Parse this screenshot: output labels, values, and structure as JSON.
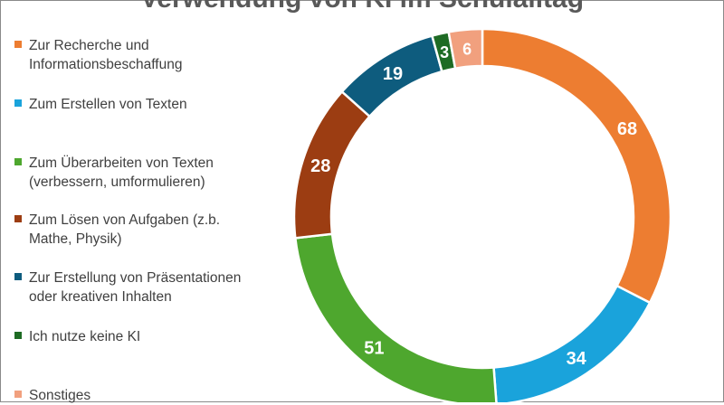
{
  "chart_data": {
    "type": "pie",
    "style": "donut",
    "title": "Verwendung von KI im Schulalltag",
    "legend_position": "left",
    "categories": [
      "Zur Recherche und\nInformationsbeschaffung",
      "Zum Erstellen von Texten",
      "Zum Überarbeiten von Texten\n(verbessern, umformulieren)",
      "Zum Lösen von Aufgaben (z.b.\nMathe, Physik)",
      "Zur Erstellung von Präsentationen\noder kreativen Inhalten",
      "Ich nutze keine KI",
      "Sonstiges"
    ],
    "values": [
      68,
      34,
      51,
      28,
      19,
      3,
      6
    ],
    "colors": [
      "#ED7D31",
      "#1AA3DB",
      "#4EA72E",
      "#9C3D12",
      "#0E5C7E",
      "#1E6B24",
      "#F1A07E"
    ],
    "data_labels_shown": true
  }
}
